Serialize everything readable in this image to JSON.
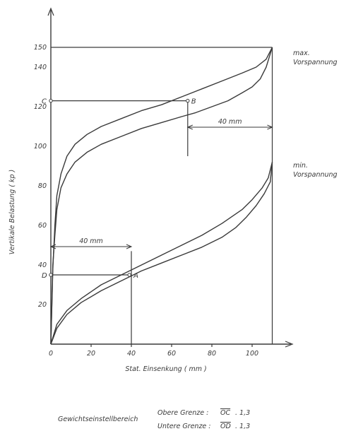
{
  "chart_data": {
    "type": "line",
    "xlabel": "Stat. Einsenkung  ( mm )",
    "ylabel": "Vertikale Belastung   ( kp )",
    "xlim": [
      0,
      120
    ],
    "ylim": [
      0,
      155
    ],
    "x_ticks": [
      "0",
      "20",
      "40",
      "60",
      "80",
      "100"
    ],
    "y_ticks": [
      "20",
      "40",
      "60",
      "80",
      "100",
      "120",
      "140",
      "150"
    ],
    "grid": false,
    "series": [
      {
        "name": "max. Vorspannung",
        "loop": [
          {
            "x": [
              0,
              1,
              2,
              3,
              5,
              8,
              12,
              18,
              25,
              35,
              45,
              55,
              65,
              75,
              85,
              95,
              102,
              107,
              110
            ],
            "y": [
              0,
              38,
              60,
              75,
              86,
              95,
              101,
              106,
              110,
              114,
              118,
              121,
              125,
              129,
              133,
              137,
              140,
              144,
              150
            ]
          },
          {
            "x": [
              110,
              107,
              104,
              100,
              95,
              88,
              80,
              72,
              65,
              55,
              45,
              35,
              25,
              18,
              12,
              8,
              5,
              3,
              2,
              1,
              0
            ],
            "y": [
              150,
              140,
              134,
              130,
              127,
              123,
              120,
              117,
              115,
              112,
              109,
              105,
              101,
              97,
              92,
              86,
              79,
              68,
              55,
              40,
              0
            ]
          }
        ]
      },
      {
        "name": "min. Vorspannung",
        "loop": [
          {
            "x": [
              0,
              3,
              8,
              15,
              25,
              35,
              45,
              55,
              65,
              75,
              85,
              95,
              100,
              105,
              108,
              110
            ],
            "y": [
              0,
              10,
              17,
              23,
              30,
              35,
              40,
              45,
              50,
              55,
              61,
              68,
              73,
              79,
              84,
              92
            ]
          },
          {
            "x": [
              110,
              109,
              106,
              102,
              97,
              92,
              85,
              75,
              65,
              55,
              45,
              35,
              25,
              15,
              8,
              3,
              0
            ],
            "y": [
              92,
              82,
              76,
              70,
              64,
              59,
              54,
              49,
              45,
              41,
              37,
              32,
              27,
              21,
              15,
              8,
              0
            ]
          }
        ]
      }
    ],
    "annotations": {
      "point_B": {
        "label": "B",
        "x": 68,
        "y": 123
      },
      "point_C": {
        "label": "C",
        "x": 0,
        "y": 123
      },
      "point_A": {
        "label": "A",
        "x": 39,
        "y": 35
      },
      "point_D": {
        "label": "D",
        "x": 0,
        "y": 35
      },
      "max_line_value": 150,
      "dim_upper": {
        "text": "40 mm",
        "x_from": 68,
        "x_to": 108
      },
      "dim_lower": {
        "text": "40 mm",
        "x_from": 0,
        "x_to": 40
      }
    },
    "labels": {
      "max_line1": "max.",
      "max_line2": "Vorspannung",
      "min_line1": "min.",
      "min_line2": "Vorspannung"
    }
  },
  "footer": {
    "label": "Gewichtseinstellbereich",
    "upper": "Obere Grenze :",
    "upper_ratio": "OC",
    "upper_value": ". 1,3",
    "lower": "Untere Grenze :",
    "lower_ratio": "OD",
    "lower_value": ". 1,3"
  }
}
